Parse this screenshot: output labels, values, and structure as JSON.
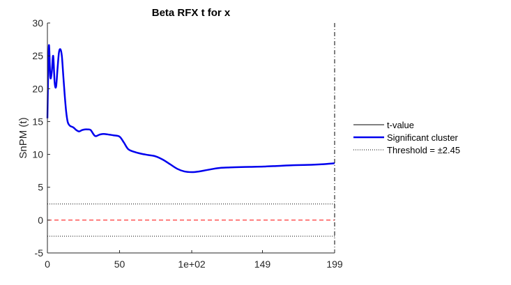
{
  "chart_data": {
    "type": "line",
    "title": "Beta RFX t for x",
    "xlabel": "",
    "ylabel": "SnPM (t)",
    "xlim": [
      0,
      199
    ],
    "ylim": [
      -5,
      30
    ],
    "x_ticks": [
      0,
      50,
      100,
      149,
      199
    ],
    "x_tick_labels": [
      "0",
      "50",
      "1e+02",
      "149",
      "199"
    ],
    "y_ticks": [
      -5,
      0,
      5,
      10,
      15,
      20,
      25,
      30
    ],
    "y_tick_labels": [
      "-5",
      "0",
      "5",
      "10",
      "15",
      "20",
      "25",
      "30"
    ],
    "grid": false,
    "legend_position": "right",
    "legend": [
      {
        "label": "t-value",
        "style": "solid",
        "color": "#000000"
      },
      {
        "label": "Significant cluster",
        "style": "solid-thick",
        "color": "#0000ee"
      },
      {
        "label": "Threshold = ±2.45",
        "style": "dotted",
        "color": "#000000"
      }
    ],
    "threshold": 2.45,
    "zero_line_color": "#ff0000",
    "series": [
      {
        "name": "Significant cluster",
        "color": "#0000ee",
        "x": [
          0,
          1,
          2,
          3,
          4,
          5,
          6,
          7,
          8,
          9,
          10,
          11,
          12,
          13,
          14,
          15,
          16,
          18,
          20,
          22,
          24,
          26,
          28,
          30,
          33,
          36,
          38,
          40,
          43,
          46,
          50,
          53,
          56,
          60,
          65,
          70,
          75,
          80,
          85,
          90,
          95,
          100,
          105,
          110,
          115,
          120,
          125,
          130,
          140,
          150,
          160,
          170,
          180,
          190,
          199
        ],
        "y": [
          15.5,
          26.5,
          21.8,
          22.5,
          25.0,
          21.0,
          20.3,
          23.0,
          25.5,
          26.0,
          25.0,
          22.0,
          19.0,
          16.5,
          15.0,
          14.5,
          14.3,
          14.1,
          13.7,
          13.5,
          13.7,
          13.8,
          13.8,
          13.7,
          12.8,
          13.0,
          13.1,
          13.1,
          13.0,
          12.9,
          12.7,
          11.8,
          10.8,
          10.4,
          10.1,
          9.9,
          9.7,
          9.2,
          8.5,
          7.8,
          7.4,
          7.3,
          7.4,
          7.6,
          7.8,
          7.95,
          8.0,
          8.05,
          8.1,
          8.15,
          8.25,
          8.35,
          8.4,
          8.5,
          8.65
        ]
      }
    ]
  }
}
